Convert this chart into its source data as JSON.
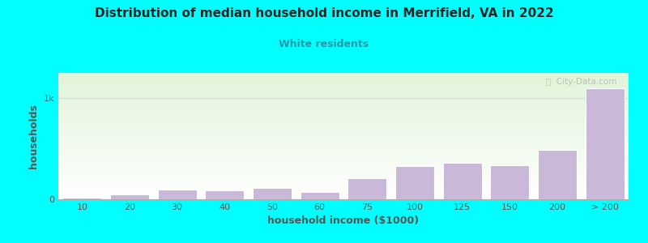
{
  "title": "Distribution of median household income in Merrifield, VA in 2022",
  "subtitle": "White residents",
  "xlabel": "household income ($1000)",
  "ylabel": "households",
  "background_color": "#00FFFF",
  "bar_color": "#c9b8d8",
  "bar_edge_color": "#ffffff",
  "grid_color": "#e0d0e8",
  "title_color": "#222222",
  "subtitle_color": "#2299aa",
  "axis_label_color": "#555555",
  "tick_color": "#555555",
  "categories": [
    "10",
    "20",
    "30",
    "40",
    "50",
    "60",
    "75",
    "100",
    "125",
    "150",
    "200",
    "> 200"
  ],
  "values": [
    20,
    50,
    100,
    85,
    110,
    70,
    210,
    330,
    360,
    340,
    490,
    1100
  ],
  "ytick_labels": [
    "0",
    "1k"
  ],
  "ytick_values": [
    0,
    1000
  ],
  "ylim": [
    0,
    1250
  ],
  "watermark": "ⓘ  City-Data.com"
}
